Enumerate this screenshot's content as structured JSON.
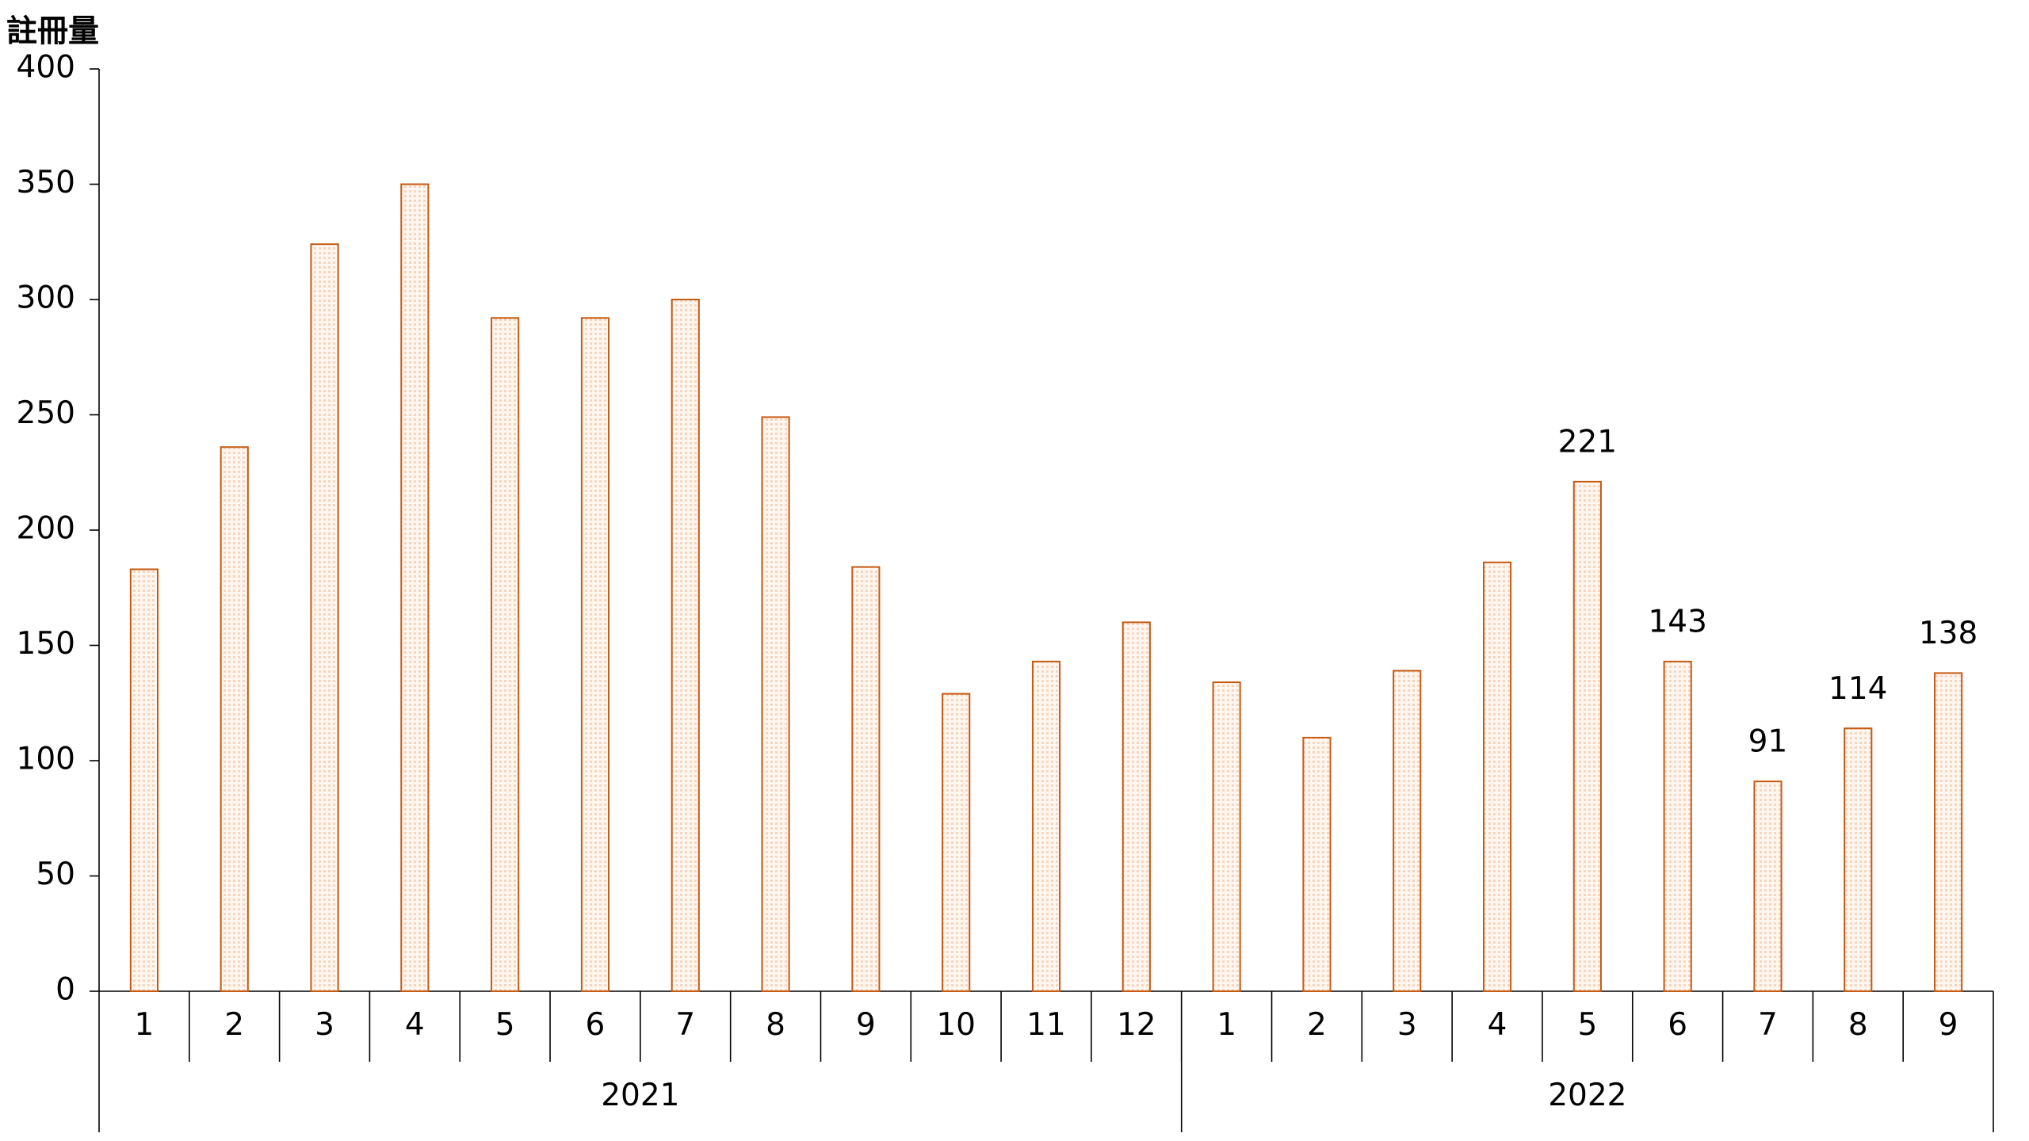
{
  "chart_data": {
    "type": "bar",
    "y_label": "註冊量",
    "color": "#c55a11",
    "ylim": [
      0,
      400
    ],
    "yticks": [
      0,
      50,
      100,
      150,
      200,
      250,
      300,
      350,
      400
    ],
    "groups": [
      {
        "label": "2021",
        "categories": [
          "1",
          "2",
          "3",
          "4",
          "5",
          "6",
          "7",
          "8",
          "9",
          "10",
          "11",
          "12"
        ],
        "values": [
          183,
          236,
          324,
          350,
          292,
          292,
          300,
          249,
          184,
          129,
          143,
          160
        ],
        "value_labels": [
          null,
          null,
          null,
          null,
          null,
          null,
          null,
          null,
          null,
          null,
          null,
          null
        ]
      },
      {
        "label": "2022",
        "categories": [
          "1",
          "2",
          "3",
          "4",
          "5",
          "6",
          "7",
          "8",
          "9"
        ],
        "values": [
          134,
          110,
          139,
          186,
          221,
          143,
          91,
          114,
          138
        ],
        "value_labels": [
          null,
          null,
          null,
          null,
          "221",
          "143",
          "91",
          "114",
          "138"
        ]
      }
    ]
  }
}
